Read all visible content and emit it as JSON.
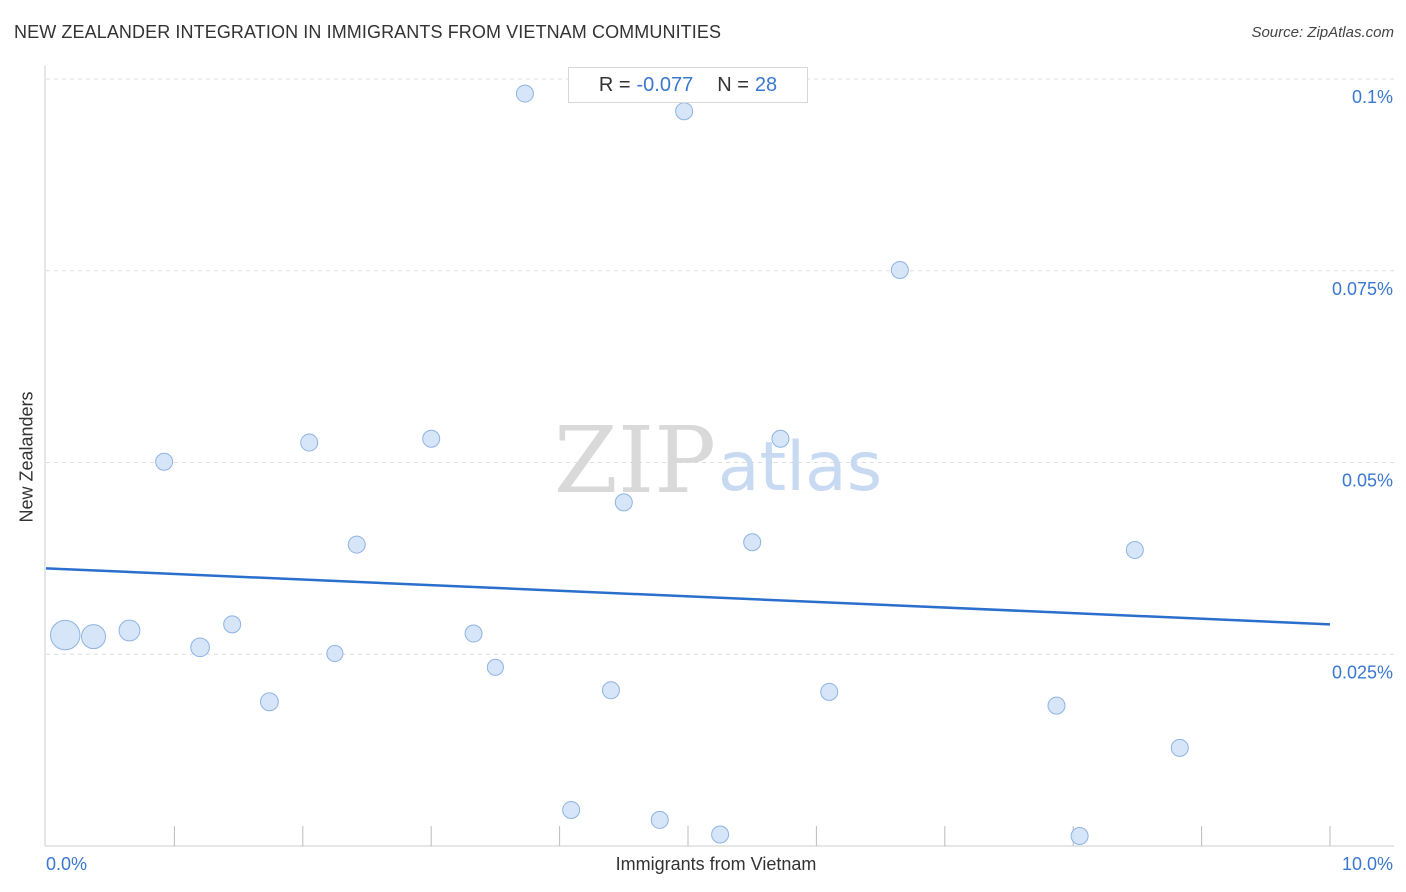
{
  "header": {
    "title": "NEW ZEALANDER INTEGRATION IN IMMIGRANTS FROM VIETNAM COMMUNITIES",
    "source": "Source: ZipAtlas.com"
  },
  "stats": {
    "r_label": "R =",
    "r_value": "-0.077",
    "n_label": "N =",
    "n_value": "28"
  },
  "watermark": {
    "zip": "ZIP",
    "atlas": "atlas"
  },
  "colors": {
    "point_fill": "#cfe0f7",
    "point_stroke": "#8fb3e3",
    "trend": "#2a6fcc",
    "tick_label": "#3a78d0",
    "grid": "#dddddd"
  },
  "chart_data": {
    "type": "scatter",
    "xlabel": "Immigrants from Vietnam",
    "ylabel": "New Zealanders",
    "xlim": [
      0,
      10
    ],
    "ylim": [
      0,
      0.1
    ],
    "x_tick_labels": [
      {
        "value": 0,
        "label": "0.0%"
      },
      {
        "value": 10,
        "label": "10.0%"
      }
    ],
    "y_tick_labels": [
      {
        "value": 0.1,
        "label": "0.1%"
      },
      {
        "value": 0.075,
        "label": "0.075%"
      },
      {
        "value": 0.05,
        "label": "0.05%"
      },
      {
        "value": 0.025,
        "label": "0.025%"
      }
    ],
    "points": [
      {
        "x": 0.15,
        "y": 0.0275,
        "w": 3
      },
      {
        "x": 0.37,
        "y": 0.0273,
        "w": 2
      },
      {
        "x": 0.65,
        "y": 0.0281,
        "w": 1.5
      },
      {
        "x": 0.92,
        "y": 0.0501,
        "w": 1
      },
      {
        "x": 1.2,
        "y": 0.0259,
        "w": 1.2
      },
      {
        "x": 1.45,
        "y": 0.0289,
        "w": 1
      },
      {
        "x": 1.74,
        "y": 0.0188,
        "w": 1.1
      },
      {
        "x": 2.05,
        "y": 0.0526,
        "w": 1
      },
      {
        "x": 2.25,
        "y": 0.0251,
        "w": 0.9
      },
      {
        "x": 2.42,
        "y": 0.0393,
        "w": 1
      },
      {
        "x": 3.0,
        "y": 0.0531,
        "w": 1
      },
      {
        "x": 3.33,
        "y": 0.0277,
        "w": 1
      },
      {
        "x": 3.5,
        "y": 0.0233,
        "w": 0.9
      },
      {
        "x": 3.73,
        "y": 0.0981,
        "w": 1
      },
      {
        "x": 4.09,
        "y": 0.0047,
        "w": 1
      },
      {
        "x": 4.4,
        "y": 0.0203,
        "w": 1
      },
      {
        "x": 4.5,
        "y": 0.0448,
        "w": 1
      },
      {
        "x": 4.78,
        "y": 0.0034,
        "w": 1
      },
      {
        "x": 4.97,
        "y": 0.0958,
        "w": 1
      },
      {
        "x": 5.25,
        "y": 0.0015,
        "w": 1
      },
      {
        "x": 5.5,
        "y": 0.0396,
        "w": 1
      },
      {
        "x": 5.72,
        "y": 0.0531,
        "w": 1
      },
      {
        "x": 6.1,
        "y": 0.0201,
        "w": 1
      },
      {
        "x": 6.65,
        "y": 0.0751,
        "w": 1
      },
      {
        "x": 7.87,
        "y": 0.0183,
        "w": 1
      },
      {
        "x": 8.05,
        "y": 0.0013,
        "w": 1
      },
      {
        "x": 8.48,
        "y": 0.0386,
        "w": 1
      },
      {
        "x": 8.83,
        "y": 0.0128,
        "w": 1
      }
    ],
    "trendline": {
      "x": [
        0,
        10
      ],
      "y": [
        0.0362,
        0.0289
      ]
    },
    "grid": true
  }
}
